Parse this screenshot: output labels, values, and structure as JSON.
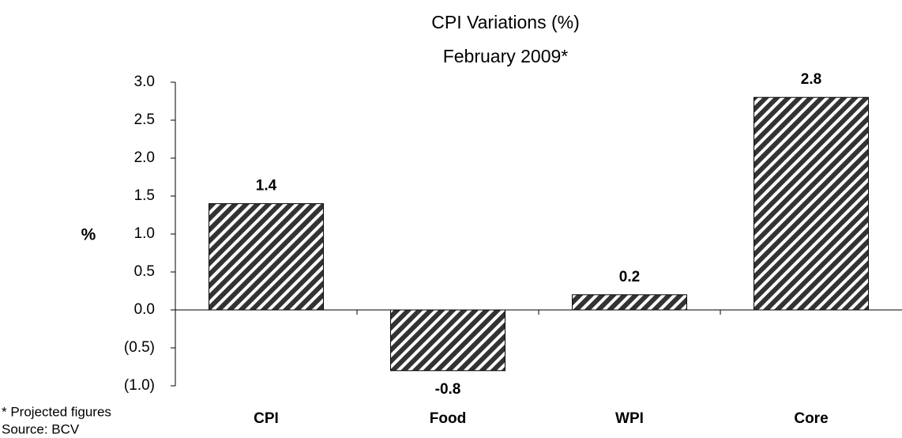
{
  "chart_data": {
    "type": "bar",
    "title": "CPI Variations (%)",
    "subtitle": "February 2009*",
    "y_label": "%",
    "categories": [
      "CPI",
      "Food",
      "WPI",
      "Core"
    ],
    "values": [
      1.4,
      -0.8,
      0.2,
      2.8
    ],
    "color": "#333333",
    "ylim": [
      -1,
      3
    ],
    "yticks": [
      {
        "value": -1,
        "label": "(1.0)"
      },
      {
        "value": -0.5,
        "label": "(0.5)"
      },
      {
        "value": 0,
        "label": "0.0"
      },
      0.5,
      {
        "value": 1,
        "label": "1.0"
      },
      1.5,
      {
        "value": 2,
        "label": "2.0"
      },
      2.5,
      {
        "value": 3,
        "label": "3.0"
      }
    ],
    "grid": false,
    "footnotes": [
      "* Projected figures",
      "Source: BCV"
    ]
  }
}
